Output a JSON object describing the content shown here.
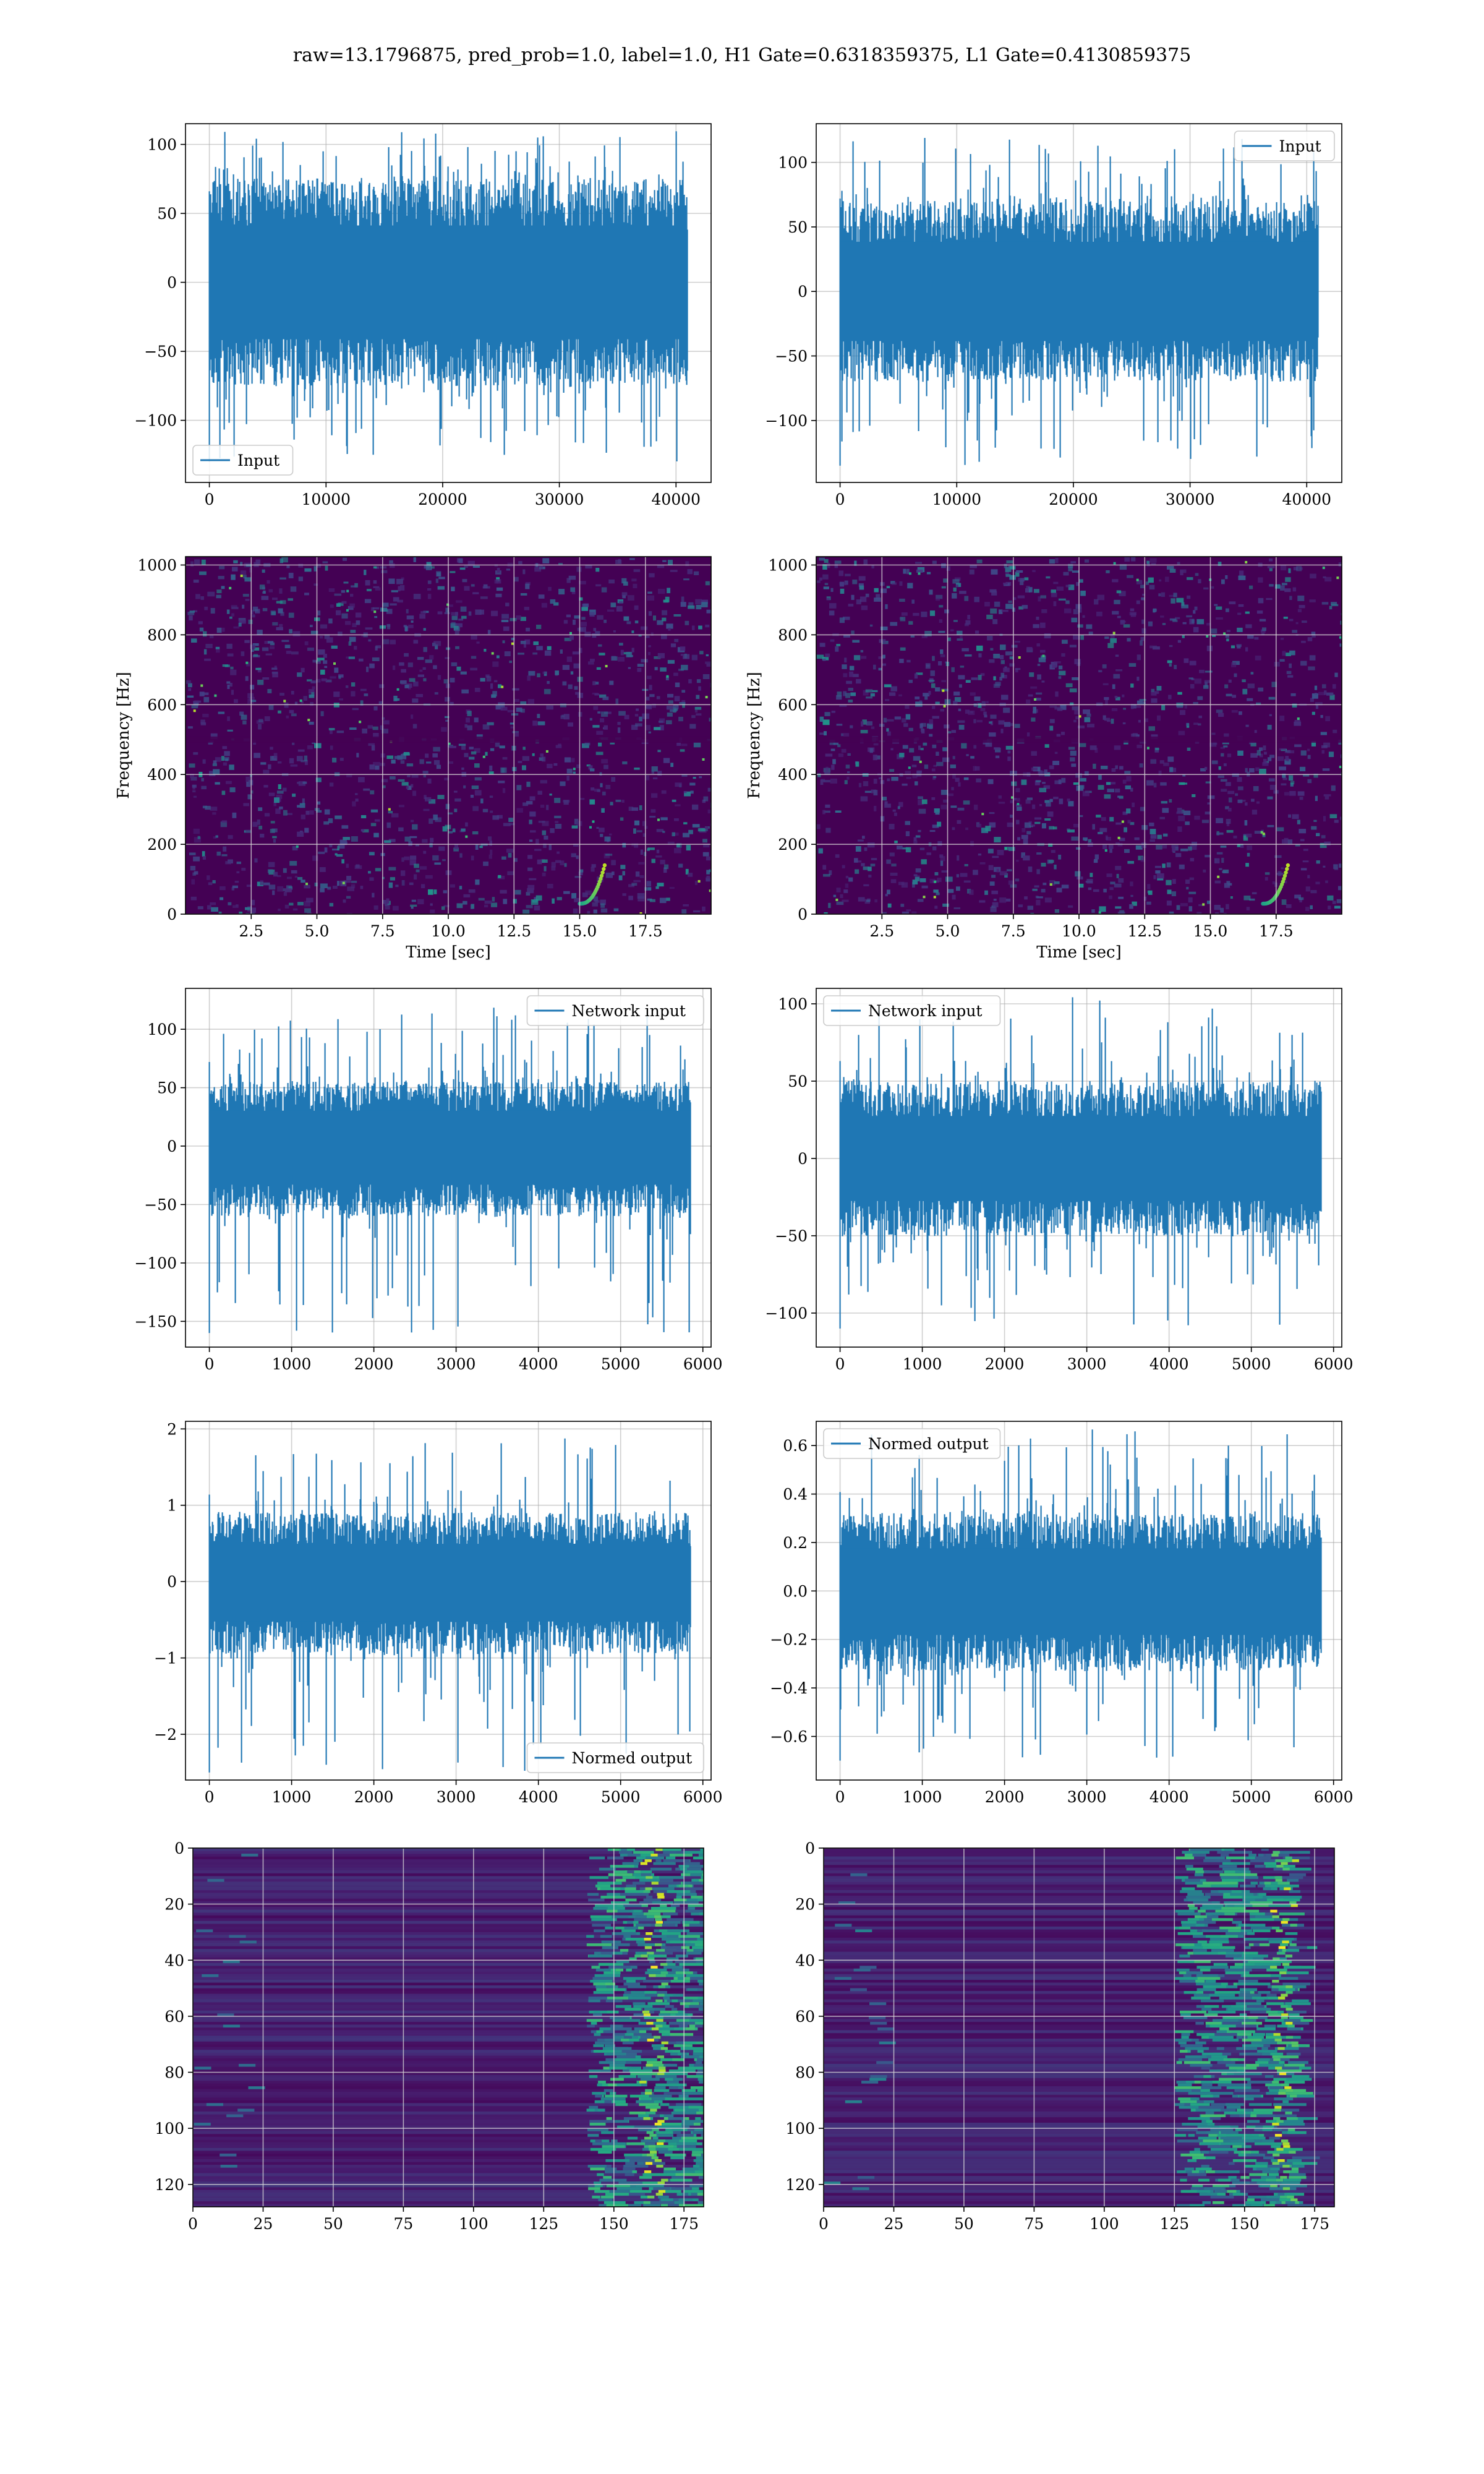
{
  "figure": {
    "suptitle": "raw=13.1796875, pred_prob=1.0, label=1.0, H1 Gate=0.6318359375, L1 Gate=0.4130859375",
    "colors": {
      "line": "#1f77b4",
      "grid": "#b0b0b0",
      "viridis_dark": "#440154",
      "viridis_mid": "#21918c",
      "viridis_bright": "#fde725"
    }
  },
  "chart_data": [
    {
      "panel": "r1c1",
      "type": "line",
      "legend": {
        "label": "Input",
        "placement": "lower-left"
      },
      "xlim": [
        -2048,
        43008
      ],
      "ylim": [
        -145,
        115
      ],
      "xticks": [
        0,
        10000,
        20000,
        30000,
        40000
      ],
      "yticks": [
        -100,
        -50,
        0,
        50,
        100
      ],
      "xtick_labels": [
        "0",
        "10000",
        "20000",
        "30000",
        "40000"
      ],
      "ytick_labels": [
        "−100",
        "−50",
        "0",
        "50",
        "100"
      ],
      "xlabel": "",
      "ylabel": "",
      "grid": true,
      "series": [
        {
          "name": "Input",
          "length": 40960,
          "x_range": [
            0,
            40960
          ],
          "envelope": {
            "typical_max": 75,
            "typical_min": -75,
            "extreme_max": 110,
            "extreme_min": -130
          }
        }
      ]
    },
    {
      "panel": "r1c2",
      "type": "line",
      "legend": {
        "label": "Input",
        "placement": "upper-right"
      },
      "xlim": [
        -2048,
        43008
      ],
      "ylim": [
        -148,
        130
      ],
      "xticks": [
        0,
        10000,
        20000,
        30000,
        40000
      ],
      "yticks": [
        -100,
        -50,
        0,
        50,
        100
      ],
      "xtick_labels": [
        "0",
        "10000",
        "20000",
        "30000",
        "40000"
      ],
      "ytick_labels": [
        "−100",
        "−50",
        "0",
        "50",
        "100"
      ],
      "xlabel": "",
      "ylabel": "",
      "grid": true,
      "series": [
        {
          "name": "Input",
          "length": 40960,
          "x_range": [
            0,
            40960
          ],
          "envelope": {
            "typical_max": 70,
            "typical_min": -70,
            "extreme_max": 120,
            "extreme_min": -135
          }
        }
      ]
    },
    {
      "panel": "r2c1",
      "type": "heatmap",
      "xlim": [
        0,
        20
      ],
      "ylim": [
        0,
        1024
      ],
      "xticks": [
        2.5,
        5.0,
        7.5,
        10.0,
        12.5,
        15.0,
        17.5
      ],
      "yticks": [
        0,
        200,
        400,
        600,
        800,
        1000
      ],
      "xtick_labels": [
        "2.5",
        "5.0",
        "7.5",
        "10.0",
        "12.5",
        "15.0",
        "17.5"
      ],
      "ytick_labels": [
        "0",
        "200",
        "400",
        "600",
        "800",
        "1000"
      ],
      "xlabel": "Time [sec]",
      "ylabel": "Frequency [Hz]",
      "grid": true,
      "colormap": "viridis",
      "features": {
        "chirp_time_sec": 16.0,
        "dark_band_hz": 500
      }
    },
    {
      "panel": "r2c2",
      "type": "heatmap",
      "xlim": [
        0,
        20
      ],
      "ylim": [
        0,
        1024
      ],
      "xticks": [
        2.5,
        5.0,
        7.5,
        10.0,
        12.5,
        15.0,
        17.5
      ],
      "yticks": [
        0,
        200,
        400,
        600,
        800,
        1000
      ],
      "xtick_labels": [
        "2.5",
        "5.0",
        "7.5",
        "10.0",
        "12.5",
        "15.0",
        "17.5"
      ],
      "ytick_labels": [
        "0",
        "200",
        "400",
        "600",
        "800",
        "1000"
      ],
      "xlabel": "Time [sec]",
      "ylabel": "Frequency [Hz]",
      "grid": true,
      "colormap": "viridis",
      "features": {
        "chirp_time_sec": 18.0,
        "dark_band_hz": 500
      }
    },
    {
      "panel": "r3c1",
      "type": "line",
      "legend": {
        "label": "Network input",
        "placement": "upper-right"
      },
      "xlim": [
        -290,
        6100
      ],
      "ylim": [
        -172,
        135
      ],
      "xticks": [
        0,
        1000,
        2000,
        3000,
        4000,
        5000,
        6000
      ],
      "yticks": [
        -150,
        -100,
        -50,
        0,
        50,
        100
      ],
      "xtick_labels": [
        "0",
        "1000",
        "2000",
        "3000",
        "4000",
        "5000",
        "6000"
      ],
      "ytick_labels": [
        "−150",
        "−100",
        "−50",
        "0",
        "50",
        "100"
      ],
      "xlabel": "",
      "ylabel": "",
      "grid": true,
      "series": [
        {
          "name": "Network input",
          "length": 5850,
          "x_range": [
            0,
            5850
          ],
          "envelope": {
            "typical_max": 55,
            "typical_min": -60,
            "extreme_max": 120,
            "extreme_min": -160
          }
        }
      ]
    },
    {
      "panel": "r3c2",
      "type": "line",
      "legend": {
        "label": "Network input",
        "placement": "upper-left"
      },
      "xlim": [
        -290,
        6100
      ],
      "ylim": [
        -122,
        110
      ],
      "xticks": [
        0,
        1000,
        2000,
        3000,
        4000,
        5000,
        6000
      ],
      "yticks": [
        -100,
        -50,
        0,
        50,
        100
      ],
      "xtick_labels": [
        "0",
        "1000",
        "2000",
        "3000",
        "4000",
        "5000",
        "6000"
      ],
      "ytick_labels": [
        "−100",
        "−50",
        "0",
        "50",
        "100"
      ],
      "xlabel": "",
      "ylabel": "",
      "grid": true,
      "series": [
        {
          "name": "Network input",
          "length": 5850,
          "x_range": [
            0,
            5850
          ],
          "envelope": {
            "typical_max": 50,
            "typical_min": -50,
            "extreme_max": 105,
            "extreme_min": -110
          }
        }
      ]
    },
    {
      "panel": "r4c1",
      "type": "line",
      "legend": {
        "label": "Normed output",
        "placement": "lower-right"
      },
      "xlim": [
        -290,
        6100
      ],
      "ylim": [
        -2.6,
        2.1
      ],
      "xticks": [
        0,
        1000,
        2000,
        3000,
        4000,
        5000,
        6000
      ],
      "yticks": [
        -2,
        -1,
        0,
        1,
        2
      ],
      "xtick_labels": [
        "0",
        "1000",
        "2000",
        "3000",
        "4000",
        "5000",
        "6000"
      ],
      "ytick_labels": [
        "−2",
        "−1",
        "0",
        "1",
        "2"
      ],
      "xlabel": "",
      "ylabel": "",
      "grid": true,
      "series": [
        {
          "name": "Normed output",
          "length": 5850,
          "x_range": [
            0,
            5850
          ],
          "envelope": {
            "typical_max": 0.9,
            "typical_min": -0.95,
            "extreme_max": 1.9,
            "extreme_min": -2.5
          }
        }
      ]
    },
    {
      "panel": "r4c2",
      "type": "line",
      "legend": {
        "label": "Normed output",
        "placement": "upper-left"
      },
      "xlim": [
        -290,
        6100
      ],
      "ylim": [
        -0.78,
        0.7
      ],
      "xticks": [
        0,
        1000,
        2000,
        3000,
        4000,
        5000,
        6000
      ],
      "yticks": [
        -0.6,
        -0.4,
        -0.2,
        0.0,
        0.2,
        0.4,
        0.6
      ],
      "xtick_labels": [
        "0",
        "1000",
        "2000",
        "3000",
        "4000",
        "5000",
        "6000"
      ],
      "ytick_labels": [
        "−0.6",
        "−0.4",
        "−0.2",
        "0.0",
        "0.2",
        "0.4",
        "0.6"
      ],
      "xlabel": "",
      "ylabel": "",
      "grid": true,
      "series": [
        {
          "name": "Normed output",
          "length": 5850,
          "x_range": [
            0,
            5850
          ],
          "envelope": {
            "typical_max": 0.32,
            "typical_min": -0.33,
            "extreme_max": 0.68,
            "extreme_min": -0.7
          }
        }
      ]
    },
    {
      "panel": "r5c1",
      "type": "heatmap",
      "xlim": [
        0,
        182
      ],
      "ylim": [
        128,
        0
      ],
      "xticks": [
        0,
        25,
        50,
        75,
        100,
        125,
        150,
        175
      ],
      "yticks": [
        0,
        20,
        40,
        60,
        80,
        100,
        120
      ],
      "xtick_labels": [
        "0",
        "25",
        "50",
        "75",
        "100",
        "125",
        "150",
        "175"
      ],
      "ytick_labels": [
        "0",
        "20",
        "40",
        "60",
        "80",
        "100",
        "120"
      ],
      "xlabel": "",
      "ylabel": "",
      "grid": true,
      "colormap": "viridis",
      "features": {
        "bright_column": 163,
        "activity_start": 140
      }
    },
    {
      "panel": "r5c2",
      "type": "heatmap",
      "xlim": [
        0,
        182
      ],
      "ylim": [
        128,
        0
      ],
      "xticks": [
        0,
        25,
        50,
        75,
        100,
        125,
        150,
        175
      ],
      "yticks": [
        0,
        20,
        40,
        60,
        80,
        100,
        120
      ],
      "xtick_labels": [
        "0",
        "25",
        "50",
        "75",
        "100",
        "125",
        "150",
        "175"
      ],
      "ytick_labels": [
        "0",
        "20",
        "40",
        "60",
        "80",
        "100",
        "120"
      ],
      "xlabel": "",
      "ylabel": "",
      "grid": true,
      "colormap": "viridis",
      "features": {
        "bright_column": 163,
        "activity_start": 125
      }
    }
  ]
}
